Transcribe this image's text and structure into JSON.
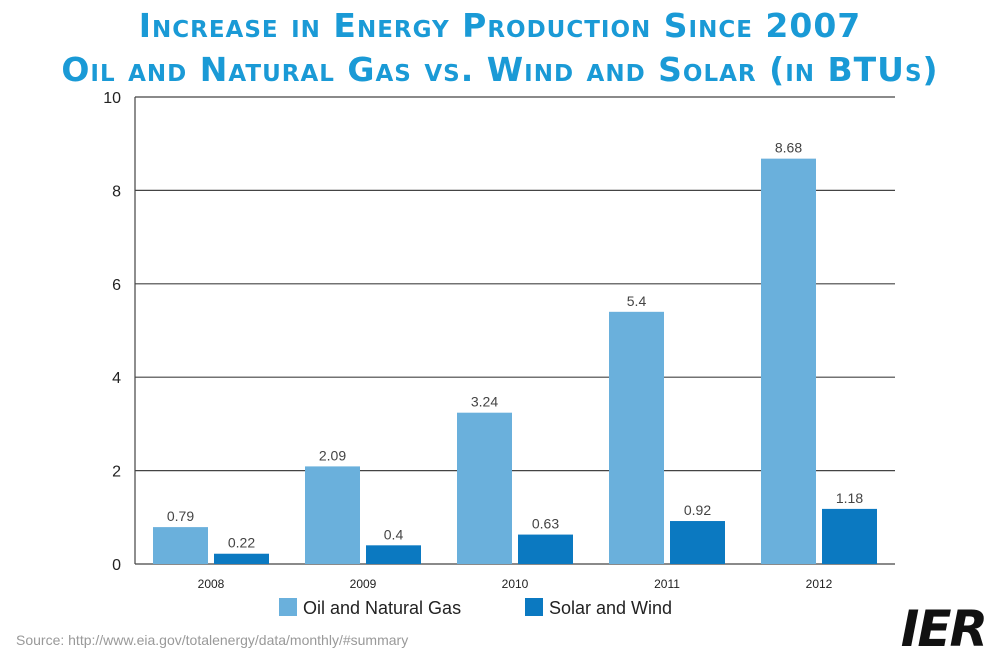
{
  "header": {
    "title_line1": "Increase in Energy Production Since 2007",
    "title_line2": "Oil and Natural Gas vs. Wind and Solar (in BTUs)"
  },
  "footer": {
    "source": "Source: http://www.eia.gov/totalenergy/data/monthly/#summary",
    "logo_text": "IER"
  },
  "colors": {
    "title": "#1a9ad6",
    "oil_gas": "#6ab0dc",
    "solar_wind": "#0b79c1"
  },
  "chart_data": {
    "type": "bar",
    "title": "",
    "xlabel": "",
    "ylabel": "",
    "categories": [
      "2008",
      "2009",
      "2010",
      "2011",
      "2012"
    ],
    "series": [
      {
        "name": "Oil and Natural Gas",
        "values": [
          0.79,
          2.09,
          3.24,
          5.4,
          8.68
        ],
        "labels": [
          "0.79",
          "2.09",
          "3.24",
          "5.4",
          "8.68"
        ],
        "color": "#6ab0dc"
      },
      {
        "name": "Solar and Wind",
        "values": [
          0.22,
          0.4,
          0.63,
          0.92,
          1.18
        ],
        "labels": [
          "0.22",
          "0.4",
          "0.63",
          "0.92",
          "1.18"
        ],
        "color": "#0b79c1"
      }
    ],
    "ylim": [
      0,
      10
    ],
    "yticks": [
      "0",
      "2",
      "4",
      "6",
      "8",
      "10"
    ],
    "grid": true,
    "legend": "bottom"
  }
}
